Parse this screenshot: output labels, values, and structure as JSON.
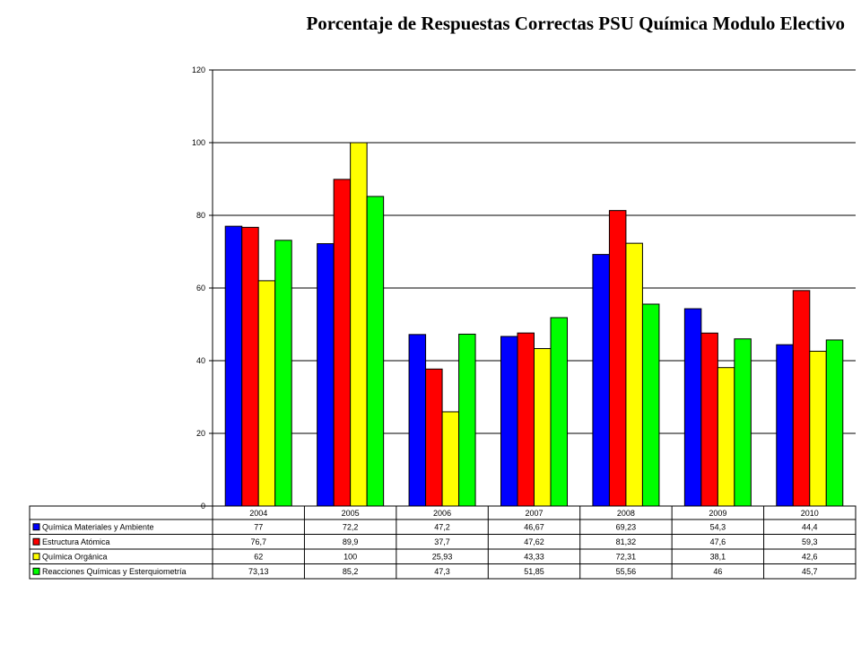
{
  "chart_data": {
    "type": "bar",
    "title": "Porcentaje de Respuestas Correctas PSU Química Modulo Electivo",
    "categories": [
      "2004",
      "2005",
      "2006",
      "2007",
      "2008",
      "2009",
      "2010"
    ],
    "ylim": [
      0,
      120
    ],
    "yticks": [
      "0",
      "20",
      "40",
      "60",
      "80",
      "100",
      "120"
    ],
    "grid": true,
    "legend": "data-table",
    "series": [
      {
        "name": "Química Materiales y Ambiente",
        "color": "#0000ff",
        "values": [
          77,
          72.2,
          47.2,
          46.67,
          69.23,
          54.3,
          44.4
        ],
        "labels": [
          "77",
          "72,2",
          "47,2",
          "46,67",
          "69,23",
          "54,3",
          "44,4"
        ]
      },
      {
        "name": "Estructura Atómica",
        "color": "#ff0000",
        "values": [
          76.7,
          89.9,
          37.7,
          47.62,
          81.32,
          47.6,
          59.3
        ],
        "labels": [
          "76,7",
          "89,9",
          "37,7",
          "47,62",
          "81,32",
          "47,6",
          "59,3"
        ]
      },
      {
        "name": "Química Orgánica",
        "color": "#ffff00",
        "values": [
          62,
          100,
          25.93,
          43.33,
          72.31,
          38.1,
          42.6
        ],
        "labels": [
          "62",
          "100",
          "25,93",
          "43,33",
          "72,31",
          "38,1",
          "42,6"
        ]
      },
      {
        "name": "Reacciones Químicas y Esterquiometría",
        "color": "#00ff00",
        "values": [
          73.13,
          85.2,
          47.3,
          51.85,
          55.56,
          46,
          45.7
        ],
        "labels": [
          "73,13",
          "85,2",
          "47,3",
          "51,85",
          "55,56",
          "46",
          "45,7"
        ]
      }
    ]
  }
}
